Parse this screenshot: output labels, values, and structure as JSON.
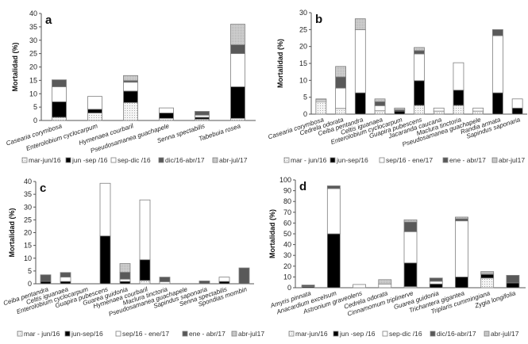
{
  "chart_data": [
    {
      "type": "bar",
      "stacked": true,
      "panel": "a",
      "ylabel": "Mortalidad (%)",
      "ylim": [
        0,
        40
      ],
      "yticks": [
        0,
        5,
        10,
        15,
        20,
        25,
        30,
        35,
        40
      ],
      "categories": [
        "Casearia corymbosa",
        "Enterolobium cyclocarpum",
        "Hymenaea courbaril",
        "Pseudosamanea guachapele",
        "Senna spectabilis",
        "Tabebuia rosea"
      ],
      "series": [
        {
          "name": "mar-jun/16",
          "fill": "dotted",
          "values": [
            1.2,
            2.8,
            6.7,
            0.8,
            0.5,
            0.8
          ]
        },
        {
          "name": "jun -sep /16",
          "fill": "black",
          "values": [
            5.8,
            1.4,
            4.3,
            2.0,
            0.7,
            11.8
          ]
        },
        {
          "name": "sep-dic /16",
          "fill": "white",
          "values": [
            5.6,
            4.8,
            3.3,
            1.9,
            0.8,
            12.4
          ]
        },
        {
          "name": "dic/16-abr/17",
          "fill": "darkgrey",
          "values": [
            2.6,
            0,
            0.6,
            0,
            1.4,
            3.3
          ]
        },
        {
          "name": "abr-jul/17",
          "fill": "lightgrey",
          "values": [
            0,
            0,
            1.9,
            0,
            0,
            7.7
          ]
        }
      ]
    },
    {
      "type": "bar",
      "stacked": true,
      "panel": "b",
      "ylabel": "Mortalidad (%)",
      "ylim": [
        0,
        30
      ],
      "yticks": [
        0,
        5,
        10,
        15,
        20,
        25,
        30
      ],
      "categories": [
        "Casearia corymbosa",
        "Cedrela odorata",
        "Ceiba pentandra",
        "Celtis iguanaea",
        "Enterolobium cyclocarpum",
        "Guapira pubescens",
        "Jacaranda caucana",
        "Maclura tinctoria",
        "Pseudosamanea guachapele",
        "Randia armata",
        "Sapindus saponaria"
      ],
      "series": [
        {
          "name": "mar - jun/16",
          "fill": "dotted",
          "values": [
            3.7,
            1.7,
            0,
            1.0,
            0,
            2.6,
            0.9,
            2.6,
            0.9,
            0,
            0
          ]
        },
        {
          "name": "jun-sep/16",
          "fill": "black",
          "values": [
            0,
            0,
            6.3,
            0,
            0.9,
            7.3,
            0,
            4.5,
            0,
            6.3,
            1.8
          ]
        },
        {
          "name": "sep/16 - ene/17",
          "fill": "white",
          "values": [
            0.5,
            6.0,
            18.7,
            1.5,
            0,
            7.9,
            0.9,
            8.1,
            0.9,
            16.9,
            2.7
          ]
        },
        {
          "name": "ene - abr/17",
          "fill": "darkgrey",
          "values": [
            0,
            3.3,
            0,
            1.2,
            0.4,
            1.0,
            0,
            0,
            0,
            1.8,
            0
          ]
        },
        {
          "name": "abr-jul17",
          "fill": "lightgrey",
          "values": [
            0.3,
            3.1,
            3.2,
            0.8,
            0.5,
            0.9,
            0,
            0,
            0,
            0,
            0
          ]
        }
      ]
    },
    {
      "type": "bar",
      "stacked": true,
      "panel": "c",
      "ylabel": "Mortalidad (%)",
      "ylim": [
        0,
        40
      ],
      "yticks": [
        0,
        5,
        10,
        15,
        20,
        25,
        30,
        35,
        40
      ],
      "categories": [
        "Ceiba pentandra",
        "Celtis iguanaea",
        "Enterolobium cyclocarpum",
        "Guapira pubescens",
        "Guarea guidonia",
        "Hymenaea courbaril",
        "Maclura tinctoria",
        "Pseudosamanea guachapele",
        "Sapindus saponaria",
        "Senna spectabilis",
        "Spondias mombin"
      ],
      "series": [
        {
          "name": "mar - jun/16",
          "fill": "dotted",
          "values": [
            0,
            0,
            0,
            0,
            0,
            1.3,
            0,
            0,
            0,
            0,
            0
          ]
        },
        {
          "name": "jun-sep/16",
          "fill": "black",
          "values": [
            0.9,
            0.9,
            0,
            18.7,
            0.9,
            8.1,
            0,
            0,
            0,
            0.9,
            0
          ]
        },
        {
          "name": "sep/16 - ene/17",
          "fill": "white",
          "values": [
            0,
            1.7,
            0,
            20.6,
            0.9,
            23.4,
            0.8,
            0,
            0,
            1.7,
            0
          ]
        },
        {
          "name": "ene - abr/17",
          "fill": "darkgrey",
          "values": [
            2.6,
            1.8,
            0,
            0,
            2.7,
            0,
            1.8,
            0,
            1.1,
            0,
            6.2
          ]
        },
        {
          "name": "abr-jul17",
          "fill": "lightgrey",
          "values": [
            0,
            0,
            0,
            0,
            3.4,
            0,
            0,
            0,
            0,
            0,
            0
          ]
        }
      ]
    },
    {
      "type": "bar",
      "stacked": true,
      "panel": "d",
      "ylabel": "Mortalidad (%)",
      "ylim": [
        0,
        100
      ],
      "yticks": [
        0,
        10,
        20,
        30,
        40,
        50,
        60,
        70,
        80,
        90,
        100
      ],
      "categories": [
        "Amyris pinnata",
        "Anacardium excelsum",
        "Astronium graveolens",
        "Cedrela odorata",
        "Cinnamomum triplinerve",
        "Guarea guidonia",
        "Trichantera gigantea",
        "Triplaris cummingiana",
        "Zygia longifolia"
      ],
      "series": [
        {
          "name": "mar-jun/16",
          "fill": "dotted",
          "values": [
            0,
            0,
            0,
            0,
            1.0,
            0,
            0,
            9.0,
            0
          ]
        },
        {
          "name": "jun -sep /16",
          "fill": "black",
          "values": [
            1.0,
            50.0,
            0,
            0,
            22.0,
            3.5,
            10.0,
            3.5,
            4.5
          ]
        },
        {
          "name": "sep-dic /16",
          "fill": "white",
          "values": [
            0,
            42.0,
            3.0,
            3.5,
            29.0,
            2.5,
            52.0,
            1.0,
            0
          ]
        },
        {
          "name": "dic/16-abr/17",
          "fill": "darkgrey",
          "values": [
            1.5,
            2.5,
            0,
            0,
            9.0,
            3.0,
            2.0,
            0,
            7.0
          ]
        },
        {
          "name": "abr-jul/17",
          "fill": "lightgrey",
          "values": [
            0,
            0,
            0,
            4.0,
            2.0,
            0,
            1.5,
            1.5,
            0
          ]
        }
      ]
    }
  ],
  "fill_colors": {
    "dotted": "#f2f2f2",
    "black": "#000000",
    "white": "#ffffff",
    "darkgrey": "#595959",
    "lightgrey": "#c8c8c8",
    "outline": "#7f7f7f",
    "axis": "#555555"
  }
}
